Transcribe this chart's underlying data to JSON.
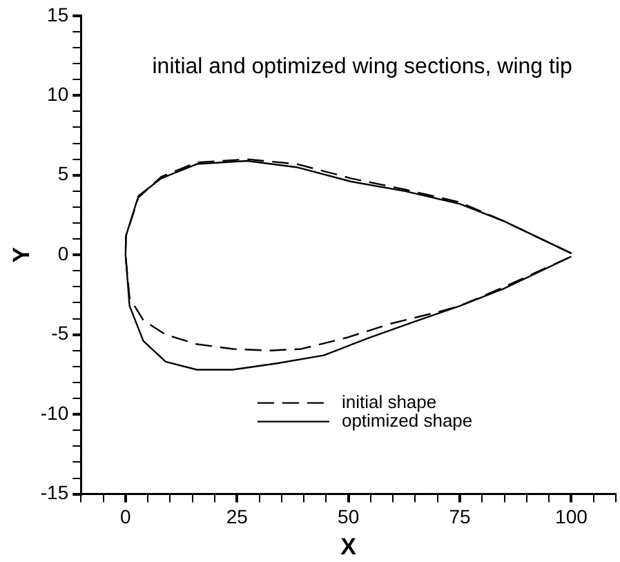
{
  "chart_data": {
    "type": "line",
    "title": "initial and optimized wing sections, wing tip",
    "xlabel": "X",
    "ylabel": "Y",
    "xlim": [
      -10,
      110
    ],
    "ylim": [
      -15,
      15
    ],
    "xticks": [
      {
        "value": -10,
        "label": null
      },
      {
        "value": -5,
        "label": null
      },
      0,
      {
        "value": 5,
        "label": null
      },
      {
        "value": 10,
        "label": null
      },
      {
        "value": 15,
        "label": null
      },
      {
        "value": 20,
        "label": null
      },
      25,
      {
        "value": 30,
        "label": null
      },
      {
        "value": 35,
        "label": null
      },
      {
        "value": 40,
        "label": null
      },
      {
        "value": 45,
        "label": null
      },
      50,
      {
        "value": 55,
        "label": null
      },
      {
        "value": 60,
        "label": null
      },
      {
        "value": 65,
        "label": null
      },
      {
        "value": 70,
        "label": null
      },
      75,
      {
        "value": 80,
        "label": null
      },
      {
        "value": 85,
        "label": null
      },
      {
        "value": 90,
        "label": null
      },
      {
        "value": 95,
        "label": null
      },
      100,
      {
        "value": 105,
        "label": null
      },
      {
        "value": 110,
        "label": null
      }
    ],
    "yticks": [
      -15,
      {
        "value": -14,
        "label": null
      },
      {
        "value": -13,
        "label": null
      },
      {
        "value": -12,
        "label": null
      },
      {
        "value": -11,
        "label": null
      },
      -10,
      {
        "value": -9,
        "label": null
      },
      {
        "value": -8,
        "label": null
      },
      {
        "value": -7,
        "label": null
      },
      {
        "value": -6,
        "label": null
      },
      -5,
      {
        "value": -4,
        "label": null
      },
      {
        "value": -3,
        "label": null
      },
      {
        "value": -2,
        "label": null
      },
      {
        "value": -1,
        "label": null
      },
      0,
      {
        "value": 1,
        "label": null
      },
      {
        "value": 2,
        "label": null
      },
      {
        "value": 3,
        "label": null
      },
      {
        "value": 4,
        "label": null
      },
      5,
      {
        "value": 6,
        "label": null
      },
      {
        "value": 7,
        "label": null
      },
      {
        "value": 8,
        "label": null
      },
      {
        "value": 9,
        "label": null
      },
      10,
      {
        "value": 11,
        "label": null
      },
      {
        "value": 12,
        "label": null
      },
      {
        "value": 13,
        "label": null
      },
      {
        "value": 14,
        "label": null
      },
      15
    ],
    "legend": "bottom",
    "marker": "none",
    "series": [
      {
        "name": "initial shape",
        "color": "#000000",
        "line_style": "dashed",
        "x": [
          100,
          85,
          75,
          62.7,
          50.6,
          38.4,
          27.3,
          16,
          8,
          2.9,
          0.1,
          0,
          0.9,
          4,
          9,
          16,
          24.2,
          32.3,
          39.4,
          49.5,
          59.7,
          69.8,
          75,
          85,
          100
        ],
        "values": [
          0.1,
          2.1,
          3.3,
          4.1,
          4.8,
          5.7,
          6.0,
          5.8,
          4.9,
          3.6,
          1.2,
          0,
          -2.7,
          -4.1,
          -5.0,
          -5.6,
          -5.9,
          -6.0,
          -5.9,
          -5.2,
          -4.3,
          -3.6,
          -3.2,
          -2.0,
          -0.1
        ]
      },
      {
        "name": "optimized shape",
        "color": "#000000",
        "line_style": "solid",
        "x": [
          100,
          85,
          75,
          62.7,
          50.6,
          38.4,
          27.3,
          16,
          8,
          2.9,
          0.1,
          0,
          0.9,
          4,
          9,
          16,
          24,
          34,
          44.5,
          54.6,
          64.7,
          75,
          85,
          100
        ],
        "values": [
          0.1,
          2.1,
          3.2,
          4.0,
          4.6,
          5.5,
          5.9,
          5.7,
          4.8,
          3.7,
          1.2,
          0,
          -3.2,
          -5.4,
          -6.7,
          -7.2,
          -7.2,
          -6.8,
          -6.3,
          -5.2,
          -4.2,
          -3.2,
          -2.1,
          -0.1
        ]
      }
    ]
  }
}
